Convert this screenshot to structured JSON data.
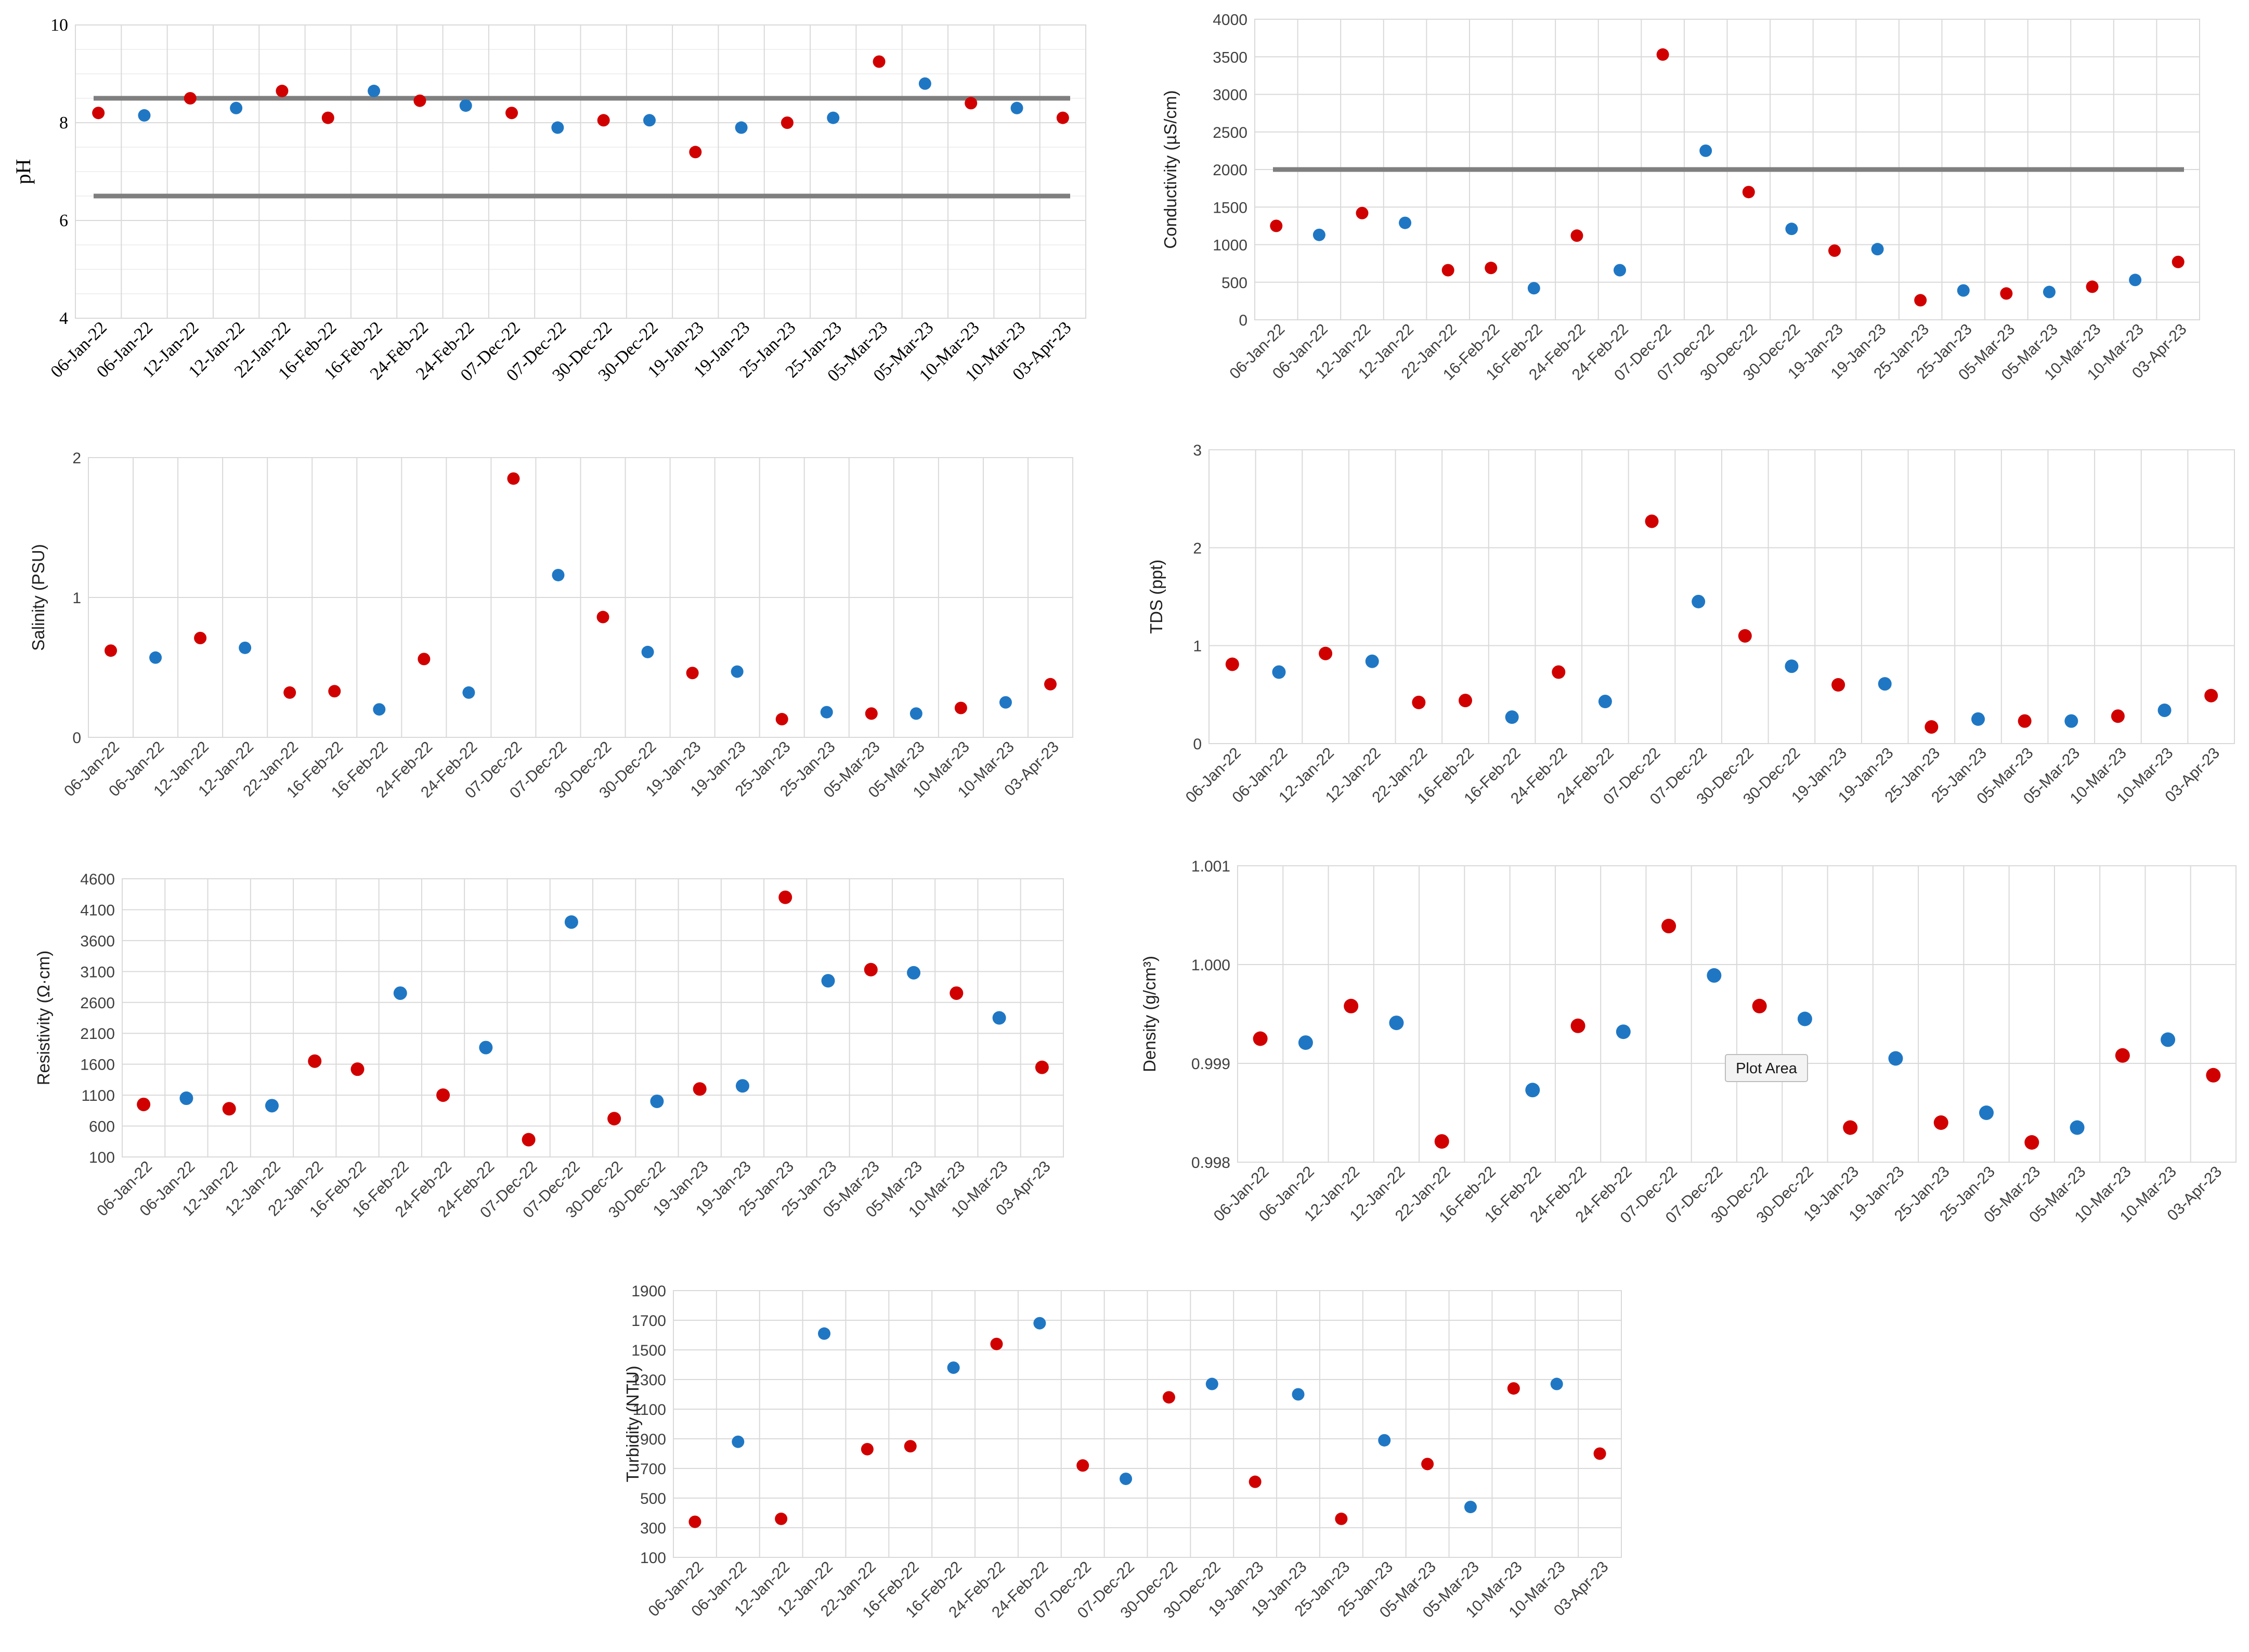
{
  "colors": {
    "red": "#d00000",
    "blue": "#1f77c4",
    "threshold": "#7f7f7f",
    "grid": "#d9d9d9"
  },
  "dates": [
    "06-Jan-22",
    "06-Jan-22",
    "12-Jan-22",
    "12-Jan-22",
    "22-Jan-22",
    "16-Feb-22",
    "16-Feb-22",
    "24-Feb-22",
    "24-Feb-22",
    "07-Dec-22",
    "07-Dec-22",
    "30-Dec-22",
    "30-Dec-22",
    "19-Jan-23",
    "19-Jan-23",
    "25-Jan-23",
    "25-Jan-23",
    "05-Mar-23",
    "05-Mar-23",
    "10-Mar-23",
    "10-Mar-23",
    "03-Apr-23"
  ],
  "tooltip": {
    "text": "Plot Area"
  },
  "chart_data": [
    {
      "id": "ph",
      "type": "scatter",
      "ylabel": "pH",
      "ylim": [
        4,
        10
      ],
      "yticks": [
        4,
        6,
        8,
        10
      ],
      "minor_step": 0.5,
      "thresholds": [
        8.5,
        6.5
      ],
      "values": [
        8.2,
        8.15,
        8.5,
        8.3,
        8.65,
        8.1,
        8.65,
        8.45,
        8.35,
        8.2,
        7.9,
        8.05,
        8.05,
        7.4,
        7.9,
        8.0,
        8.1,
        9.25,
        8.8,
        8.4,
        8.3,
        8.1
      ],
      "colors": [
        "red",
        "blue",
        "red",
        "blue",
        "red",
        "red",
        "blue",
        "red",
        "blue",
        "red",
        "blue",
        "red",
        "blue",
        "red",
        "blue",
        "red",
        "blue",
        "red",
        "blue",
        "red",
        "blue",
        "red"
      ]
    },
    {
      "id": "conductivity",
      "type": "scatter",
      "ylabel": "Conductivity (µS/cm)",
      "ylim": [
        0,
        4000
      ],
      "yticks": [
        0,
        500,
        1000,
        1500,
        2000,
        2500,
        3000,
        3500,
        4000
      ],
      "thresholds": [
        2000
      ],
      "values": [
        1250,
        1130,
        1420,
        1290,
        660,
        690,
        420,
        1120,
        660,
        3530,
        2250,
        1700,
        1210,
        920,
        940,
        260,
        390,
        350,
        370,
        440,
        530,
        770
      ],
      "colors": [
        "red",
        "blue",
        "red",
        "blue",
        "red",
        "red",
        "blue",
        "red",
        "blue",
        "red",
        "blue",
        "red",
        "blue",
        "red",
        "blue",
        "red",
        "blue",
        "red",
        "blue",
        "red",
        "blue",
        "red"
      ]
    },
    {
      "id": "salinity",
      "type": "scatter",
      "ylabel": "Salinity (PSU)",
      "ylim": [
        0,
        2
      ],
      "yticks": [
        0,
        1,
        2
      ],
      "values": [
        0.62,
        0.57,
        0.71,
        0.64,
        0.32,
        0.33,
        0.2,
        0.56,
        0.32,
        1.85,
        1.16,
        0.86,
        0.61,
        0.46,
        0.47,
        0.13,
        0.18,
        0.17,
        0.17,
        0.21,
        0.25,
        0.38
      ],
      "colors": [
        "red",
        "blue",
        "red",
        "blue",
        "red",
        "red",
        "blue",
        "red",
        "blue",
        "red",
        "blue",
        "red",
        "blue",
        "red",
        "blue",
        "red",
        "blue",
        "red",
        "blue",
        "red",
        "blue",
        "red"
      ]
    },
    {
      "id": "tds",
      "type": "scatter",
      "ylabel": "TDS (ppt)",
      "ylim": [
        0,
        3
      ],
      "yticks": [
        0,
        1,
        2,
        3
      ],
      "values": [
        0.81,
        0.73,
        0.92,
        0.84,
        0.42,
        0.44,
        0.27,
        0.73,
        0.43,
        2.27,
        1.45,
        1.1,
        0.79,
        0.6,
        0.61,
        0.17,
        0.25,
        0.23,
        0.23,
        0.28,
        0.34,
        0.49
      ],
      "colors": [
        "red",
        "blue",
        "red",
        "blue",
        "red",
        "red",
        "blue",
        "red",
        "blue",
        "red",
        "blue",
        "red",
        "blue",
        "red",
        "blue",
        "red",
        "blue",
        "red",
        "blue",
        "red",
        "blue",
        "red"
      ]
    },
    {
      "id": "resistivity",
      "type": "scatter",
      "ylabel": "Resistivity (Ω·cm)",
      "ylim": [
        100,
        4600
      ],
      "yticks": [
        100,
        600,
        1100,
        1600,
        2100,
        2600,
        3100,
        3600,
        4100,
        4600
      ],
      "values": [
        950,
        1050,
        880,
        930,
        1650,
        1520,
        2750,
        1100,
        1870,
        380,
        3900,
        720,
        1000,
        1200,
        1250,
        4300,
        2950,
        3130,
        3080,
        2750,
        2350,
        1550
      ],
      "colors": [
        "red",
        "blue",
        "red",
        "blue",
        "red",
        "red",
        "blue",
        "red",
        "blue",
        "red",
        "blue",
        "red",
        "blue",
        "red",
        "blue",
        "red",
        "blue",
        "red",
        "blue",
        "red",
        "blue",
        "red"
      ]
    },
    {
      "id": "density",
      "type": "scatter",
      "ylabel": "Density (g/cm³)",
      "ylim": [
        0.998,
        1.001
      ],
      "yticks": [
        0.998,
        0.999,
        1.0,
        1.001
      ],
      "tick_decimals": 3,
      "values": [
        0.99925,
        0.99921,
        0.99958,
        0.99941,
        0.99821,
        null,
        0.99873,
        0.99938,
        0.99932,
        1.00039,
        0.99989,
        0.99958,
        0.99945,
        0.99835,
        0.99905,
        0.9984,
        0.9985,
        0.9982,
        0.99835,
        0.99908,
        0.99924,
        0.99888
      ],
      "colors": [
        "red",
        "blue",
        "red",
        "blue",
        "red",
        "red",
        "blue",
        "red",
        "blue",
        "red",
        "blue",
        "red",
        "blue",
        "red",
        "blue",
        "red",
        "blue",
        "red",
        "blue",
        "red",
        "blue",
        "red"
      ]
    },
    {
      "id": "turbidity",
      "type": "scatter",
      "ylabel": "Turbidity (NTU)",
      "ylim": [
        100,
        1900
      ],
      "yticks": [
        100,
        300,
        500,
        700,
        900,
        1100,
        1300,
        1500,
        1700,
        1900
      ],
      "values": [
        340,
        880,
        360,
        1610,
        830,
        850,
        1380,
        1540,
        1680,
        720,
        630,
        1180,
        1270,
        610,
        1200,
        360,
        890,
        730,
        440,
        1240,
        1270,
        800
      ],
      "colors": [
        "red",
        "blue",
        "red",
        "blue",
        "red",
        "red",
        "blue",
        "red",
        "blue",
        "red",
        "blue",
        "red",
        "blue",
        "red",
        "blue",
        "red",
        "blue",
        "red",
        "blue",
        "red",
        "blue",
        "red"
      ]
    }
  ]
}
